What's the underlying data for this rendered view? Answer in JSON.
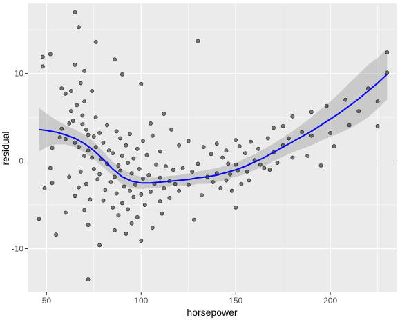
{
  "chart_data": {
    "type": "scatter",
    "xlabel": "horsepower",
    "ylabel": "residual",
    "xlim": [
      40,
      235
    ],
    "ylim": [
      -15,
      18
    ],
    "x_ticks": [
      50,
      100,
      150,
      200
    ],
    "y_ticks": [
      -10,
      0,
      10
    ],
    "x_tick_labels": [
      "50",
      "100",
      "150",
      "200"
    ],
    "y_tick_labels": [
      "-10",
      "0",
      "10"
    ],
    "grid": true,
    "reference_line_y": 0,
    "colors": {
      "panel": "#ebebeb",
      "grid": "#ffffff",
      "points": "#000000",
      "smooth": "#0000ff",
      "band": "#999999",
      "reference": "#000000"
    },
    "points": [
      [
        46,
        -6.6
      ],
      [
        48,
        11.9
      ],
      [
        48,
        10.8
      ],
      [
        49,
        -3.1
      ],
      [
        52,
        12.2
      ],
      [
        52,
        -0.8
      ],
      [
        53,
        1.5
      ],
      [
        53,
        -2.5
      ],
      [
        55,
        -8.4
      ],
      [
        57,
        2.7
      ],
      [
        58,
        3.7
      ],
      [
        58,
        8.3
      ],
      [
        60,
        -5.9
      ],
      [
        60,
        7.7
      ],
      [
        60,
        2.5
      ],
      [
        62,
        -1.8
      ],
      [
        62,
        4.3
      ],
      [
        63,
        8.0
      ],
      [
        63,
        5.7
      ],
      [
        64,
        4.6
      ],
      [
        65,
        17.0
      ],
      [
        65,
        11.0
      ],
      [
        65,
        -4.0
      ],
      [
        65,
        2.1
      ],
      [
        66,
        6.4
      ],
      [
        67,
        15.3
      ],
      [
        67,
        1.6
      ],
      [
        67,
        -3.0
      ],
      [
        68,
        8.9
      ],
      [
        68,
        -1.2
      ],
      [
        69,
        5.2
      ],
      [
        69,
        4.2
      ],
      [
        70,
        0.6
      ],
      [
        70,
        10.3
      ],
      [
        70,
        6.8
      ],
      [
        70,
        -5.6
      ],
      [
        71,
        3.6
      ],
      [
        71,
        -2.6
      ],
      [
        72,
        -13.5
      ],
      [
        72,
        -7.3
      ],
      [
        72,
        1.2
      ],
      [
        72,
        3.0
      ],
      [
        73,
        -4.4
      ],
      [
        74,
        8.0
      ],
      [
        74,
        0.4
      ],
      [
        75,
        2.8
      ],
      [
        75,
        -0.9
      ],
      [
        76,
        13.6
      ],
      [
        76,
        5.0
      ],
      [
        76,
        1.6
      ],
      [
        77,
        -2.1
      ],
      [
        78,
        -9.6
      ],
      [
        78,
        3.2
      ],
      [
        78,
        -1.5
      ],
      [
        79,
        0.2
      ],
      [
        80,
        2.1
      ],
      [
        80,
        -4.5
      ],
      [
        81,
        -3.3
      ],
      [
        82,
        4.1
      ],
      [
        82,
        -0.3
      ],
      [
        83,
        1.2
      ],
      [
        84,
        -2.4
      ],
      [
        85,
        -5.3
      ],
      [
        85,
        0.9
      ],
      [
        86,
        -1.8
      ],
      [
        86,
        11.6
      ],
      [
        86,
        -7.9
      ],
      [
        87,
        3.4
      ],
      [
        87,
        -3.7
      ],
      [
        88,
        -0.5
      ],
      [
        88,
        -6.2
      ],
      [
        89,
        2.6
      ],
      [
        89,
        -1.1
      ],
      [
        90,
        -4.8
      ],
      [
        90,
        0.6
      ],
      [
        90,
        9.9
      ],
      [
        91,
        -2.9
      ],
      [
        92,
        -8.3
      ],
      [
        92,
        1.8
      ],
      [
        93,
        -0.2
      ],
      [
        93,
        -5.5
      ],
      [
        94,
        3.1
      ],
      [
        94,
        -3.4
      ],
      [
        95,
        -1.4
      ],
      [
        95,
        -7.1
      ],
      [
        96,
        0.3
      ],
      [
        96,
        -4.1
      ],
      [
        97,
        -2.7
      ],
      [
        98,
        1.4
      ],
      [
        98,
        -6.4
      ],
      [
        99,
        -0.9
      ],
      [
        100,
        -3.8
      ],
      [
        100,
        -9.1
      ],
      [
        100,
        8.8
      ],
      [
        101,
        2.3
      ],
      [
        101,
        -2.0
      ],
      [
        102,
        -5.0
      ],
      [
        103,
        0.7
      ],
      [
        104,
        -1.6
      ],
      [
        105,
        -3.5
      ],
      [
        105,
        4.3
      ],
      [
        106,
        -7.6
      ],
      [
        106,
        2.9
      ],
      [
        107,
        -2.6
      ],
      [
        108,
        -0.4
      ],
      [
        110,
        -4.6
      ],
      [
        110,
        -1.9
      ],
      [
        110,
        1.1
      ],
      [
        111,
        -6.0
      ],
      [
        112,
        -3.1
      ],
      [
        112,
        5.4
      ],
      [
        113,
        -0.6
      ],
      [
        115,
        -2.3
      ],
      [
        115,
        -4.2
      ],
      [
        116,
        3.6
      ],
      [
        117,
        -1.0
      ],
      [
        118,
        -2.6
      ],
      [
        120,
        1.8
      ],
      [
        120,
        -3.4
      ],
      [
        122,
        -0.8
      ],
      [
        125,
        2.3
      ],
      [
        125,
        -2.7
      ],
      [
        127,
        -1.2
      ],
      [
        128,
        -6.7
      ],
      [
        130,
        13.7
      ],
      [
        130,
        -0.3
      ],
      [
        132,
        -3.9
      ],
      [
        133,
        1.6
      ],
      [
        135,
        -1.8
      ],
      [
        137,
        0.8
      ],
      [
        138,
        -2.4
      ],
      [
        140,
        2.0
      ],
      [
        140,
        -1.4
      ],
      [
        142,
        -3.1
      ],
      [
        143,
        0.4
      ],
      [
        145,
        1.2
      ],
      [
        145,
        -2.2
      ],
      [
        147,
        -1.5
      ],
      [
        148,
        -3.4
      ],
      [
        150,
        2.4
      ],
      [
        150,
        -5.3
      ],
      [
        150,
        -0.4
      ],
      [
        152,
        1.7
      ],
      [
        153,
        -2.6
      ],
      [
        155,
        0.9
      ],
      [
        156,
        -1.2
      ],
      [
        158,
        2.2
      ],
      [
        160,
        0.1
      ],
      [
        162,
        1.4
      ],
      [
        165,
        -0.8
      ],
      [
        167,
        2.6
      ],
      [
        170,
        1.0
      ],
      [
        170,
        3.8
      ],
      [
        172,
        -0.2
      ],
      [
        175,
        4.0
      ],
      [
        175,
        1.8
      ],
      [
        180,
        5.1
      ],
      [
        180,
        0.4
      ],
      [
        185,
        3.3
      ],
      [
        190,
        5.6
      ],
      [
        190,
        2.9
      ],
      [
        195,
        -0.5
      ],
      [
        198,
        6.3
      ],
      [
        200,
        3.2
      ],
      [
        210,
        4.1
      ],
      [
        215,
        5.7
      ],
      [
        220,
        8.3
      ],
      [
        225,
        6.8
      ],
      [
        225,
        4.0
      ],
      [
        230,
        12.4
      ],
      [
        230,
        10.1
      ],
      [
        208,
        7.0
      ],
      [
        202,
        1.7
      ],
      [
        188,
        0.6
      ],
      [
        178,
        2.6
      ],
      [
        168,
        -1.0
      ],
      [
        163,
        -0.4
      ],
      [
        157,
        -2.2
      ],
      [
        151,
        -1.1
      ],
      [
        146,
        -0.3
      ]
    ],
    "smooth": {
      "x": [
        46,
        50,
        55,
        60,
        65,
        70,
        75,
        80,
        85,
        90,
        95,
        100,
        105,
        110,
        115,
        120,
        125,
        130,
        135,
        140,
        145,
        150,
        155,
        160,
        165,
        170,
        175,
        180,
        185,
        190,
        195,
        200,
        205,
        210,
        215,
        220,
        225,
        230
      ],
      "y": [
        3.6,
        3.5,
        3.3,
        3.0,
        2.6,
        2.0,
        1.2,
        0.2,
        -0.9,
        -1.8,
        -2.3,
        -2.5,
        -2.5,
        -2.4,
        -2.3,
        -2.2,
        -2.1,
        -1.9,
        -1.8,
        -1.6,
        -1.3,
        -1.0,
        -0.6,
        -0.1,
        0.4,
        1.0,
        1.6,
        2.2,
        2.8,
        3.4,
        4.1,
        4.8,
        5.5,
        6.3,
        7.1,
        8.0,
        8.9,
        9.9
      ],
      "band_upper": [
        6.1,
        5.4,
        4.7,
        4.1,
        3.6,
        3.0,
        2.2,
        1.1,
        -0.1,
        -0.9,
        -1.5,
        -1.8,
        -1.9,
        -1.8,
        -1.7,
        -1.6,
        -1.4,
        -1.2,
        -1.0,
        -0.8,
        -0.5,
        -0.2,
        0.3,
        0.8,
        1.4,
        2.0,
        2.7,
        3.4,
        4.2,
        5.0,
        5.9,
        6.8,
        7.8,
        8.9,
        9.9,
        11.0,
        11.8,
        12.8
      ],
      "band_lower": [
        1.1,
        1.6,
        1.9,
        1.9,
        1.6,
        1.0,
        0.2,
        -0.7,
        -1.7,
        -2.7,
        -3.1,
        -3.2,
        -3.1,
        -3.0,
        -2.9,
        -2.8,
        -2.8,
        -2.6,
        -2.6,
        -2.4,
        -2.1,
        -1.8,
        -1.5,
        -1.0,
        -0.6,
        0.0,
        0.5,
        1.0,
        1.4,
        1.8,
        2.3,
        2.8,
        3.2,
        3.7,
        4.3,
        5.0,
        6.0,
        7.0
      ]
    }
  }
}
